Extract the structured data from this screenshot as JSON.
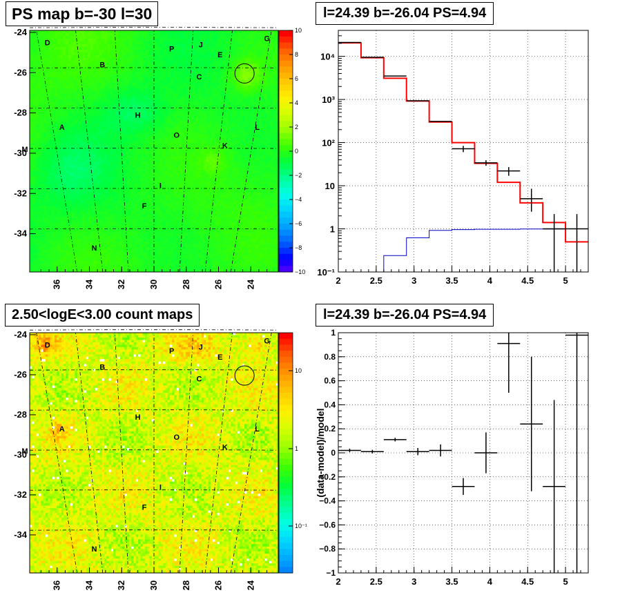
{
  "panels": {
    "ps_map": {
      "title": "PS map b=-30 l=30",
      "type": "heatmap",
      "xticks": [
        "36",
        "34",
        "32",
        "30",
        "28",
        "26",
        "24"
      ],
      "yticks": [
        "-24",
        "-26",
        "-28",
        "-30",
        "-32",
        "-34"
      ],
      "colorbar_ticks": [
        "10",
        "8",
        "6",
        "4",
        "2",
        "0",
        "−2",
        "−4",
        "−6",
        "−8",
        "−10"
      ],
      "zlim": [
        -10,
        10
      ]
    },
    "count_map": {
      "title": "2.50<logE<3.00 count maps",
      "type": "heatmap",
      "xticks": [
        "36",
        "34",
        "32",
        "30",
        "28",
        "26",
        "24"
      ],
      "yticks": [
        "-24",
        "-26",
        "-28",
        "-30",
        "-32",
        "-34"
      ],
      "colorbar_ticks": [
        "10",
        "1",
        "10⁻¹"
      ],
      "zscale": "log"
    },
    "spectrum": {
      "title": "l=24.39 b=-26.04 PS=4.94",
      "xticks": [
        "2",
        "2.5",
        "3",
        "3.5",
        "4",
        "4.5",
        "5"
      ],
      "yticks": [
        "10⁴",
        "10³",
        "10²",
        "10",
        "1",
        "10⁻¹"
      ]
    },
    "residual": {
      "title": "l=24.39 b=-26.04 PS=4.94",
      "ylabel": "(data-model)/model",
      "xticks": [
        "2",
        "2.5",
        "3",
        "3.5",
        "4",
        "4.5",
        "5"
      ],
      "yticks": [
        "1",
        "0.8",
        "0.6",
        "0.4",
        "0.2",
        "0",
        "−0.2",
        "−0.4",
        "−0.6",
        "−0.8",
        "−1"
      ]
    }
  },
  "source_labels": [
    {
      "name": "A",
      "l": 35.7,
      "b": -28.7
    },
    {
      "name": "B",
      "l": 33.2,
      "b": -25.6
    },
    {
      "name": "C",
      "l": 27.2,
      "b": -26.2
    },
    {
      "name": "D",
      "l": 36.6,
      "b": -24.5
    },
    {
      "name": "E",
      "l": 25.9,
      "b": -25.1
    },
    {
      "name": "F",
      "l": 30.6,
      "b": -32.6
    },
    {
      "name": "G",
      "l": 23.0,
      "b": -24.3
    },
    {
      "name": "H",
      "l": 31.0,
      "b": -28.1
    },
    {
      "name": "I",
      "l": 29.6,
      "b": -31.6
    },
    {
      "name": "J",
      "l": 27.1,
      "b": -24.6
    },
    {
      "name": "K",
      "l": 25.6,
      "b": -29.6
    },
    {
      "name": "L",
      "l": 23.6,
      "b": -28.7
    },
    {
      "name": "M",
      "l": 38.0,
      "b": -29.8
    },
    {
      "name": "N",
      "l": 33.7,
      "b": -34.7
    },
    {
      "name": "O",
      "l": 28.6,
      "b": -29.1
    },
    {
      "name": "P",
      "l": 28.9,
      "b": -24.8
    }
  ],
  "circle_marker": {
    "l": 24.39,
    "b": -26.04
  },
  "chart_data": [
    {
      "type": "heatmap",
      "title": "PS map b=-30 l=30",
      "xlim": [
        37.7,
        22.3
      ],
      "ylim": [
        -35.9,
        -23.9
      ],
      "zlim": [
        -10,
        10
      ]
    },
    {
      "type": "heatmap",
      "title": "2.50<logE<3.00 count maps",
      "xlim": [
        37.7,
        22.3
      ],
      "ylim": [
        -35.9,
        -23.9
      ],
      "zscale": "log"
    },
    {
      "type": "line",
      "title": "l=24.39 b=-26.04 PS=4.94",
      "xlim": [
        2,
        5.3
      ],
      "ylim": [
        0.1,
        40000
      ],
      "yscale": "log",
      "grid": true,
      "bin_edges": [
        1.7,
        2.0,
        2.3,
        2.6,
        2.9,
        3.2,
        3.5,
        3.8,
        4.1,
        4.4,
        4.7,
        5.0,
        5.3
      ],
      "series": [
        {
          "values": [
            25000,
            20500,
            9300,
            3100,
            920,
            300,
            100,
            33,
            12,
            4,
            1.4,
            0.5
          ],
          "color": "#ff0000"
        },
        {
          "values": [
            0,
            0,
            0.09,
            0.24,
            0.62,
            0.92,
            0.96,
            0.98,
            0.98,
            0.99,
            0.99,
            1.0
          ],
          "color": "#0000cc"
        }
      ],
      "points": [
        {
          "x": 2.15,
          "y": 21000
        },
        {
          "x": 2.45,
          "y": 9500
        },
        {
          "x": 2.75,
          "y": 3500
        },
        {
          "x": 3.05,
          "y": 930
        },
        {
          "x": 3.35,
          "y": 310
        },
        {
          "x": 3.65,
          "y": 72,
          "yerr": [
            12,
            12
          ]
        },
        {
          "x": 3.95,
          "y": 34,
          "yerr": [
            5,
            5
          ]
        },
        {
          "x": 4.25,
          "y": 22,
          "yerr": [
            5,
            5
          ]
        },
        {
          "x": 4.55,
          "y": 5,
          "yerr": [
            2.5,
            3.5
          ]
        },
        {
          "x": 4.85,
          "y": 1,
          "yerr": [
            0.9,
            1.2
          ]
        },
        {
          "x": 5.15,
          "y": 1,
          "yerr": [
            0.9,
            1.2
          ]
        }
      ]
    },
    {
      "type": "scatter",
      "title": "l=24.39 b=-26.04 PS=4.94",
      "ylabel": "(data-model)/model",
      "xlim": [
        2,
        5.3
      ],
      "ylim": [
        -1,
        1
      ],
      "grid": true,
      "points": [
        {
          "x": 2.15,
          "y": 0.02,
          "xerr": 0.15,
          "yerr": 0.015
        },
        {
          "x": 2.45,
          "y": 0.01,
          "xerr": 0.15,
          "yerr": 0.015
        },
        {
          "x": 2.75,
          "y": 0.11,
          "xerr": 0.15,
          "yerr": 0.015
        },
        {
          "x": 3.05,
          "y": 0.01,
          "xerr": 0.15,
          "yerr": 0.03
        },
        {
          "x": 3.35,
          "y": 0.02,
          "xerr": 0.15,
          "yerr": 0.05
        },
        {
          "x": 3.65,
          "y": -0.28,
          "xerr": 0.15,
          "yerr": 0.07
        },
        {
          "x": 3.95,
          "y": 0.0,
          "xerr": 0.15,
          "yerr": 0.17
        },
        {
          "x": 4.25,
          "y": 0.91,
          "xerr": 0.15,
          "yerr": 0.41
        },
        {
          "x": 4.55,
          "y": 0.24,
          "xerr": 0.15,
          "yerr": 0.56
        },
        {
          "x": 4.85,
          "y": -0.28,
          "xerr": 0.15,
          "yerr": 0.72
        },
        {
          "x": 5.15,
          "y": 0.98,
          "xerr": 0.15,
          "yerr": 2.0
        }
      ]
    }
  ]
}
